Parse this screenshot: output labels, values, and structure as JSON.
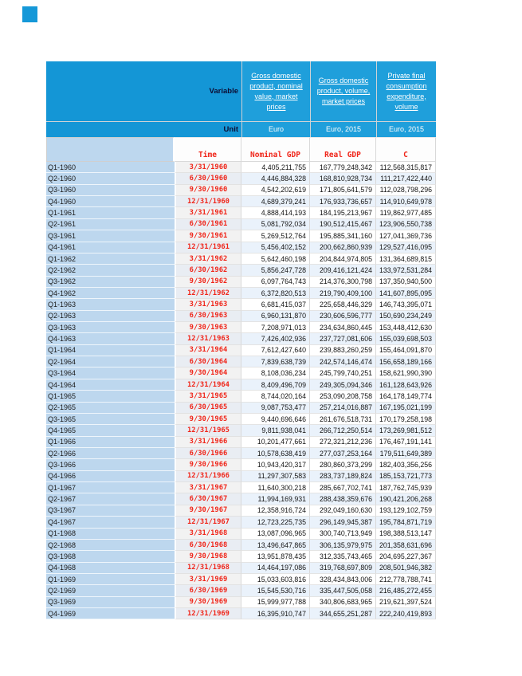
{
  "header": {
    "variable_label": "Variable",
    "unit_label": "Unit",
    "columns": [
      {
        "title": "Gross domestic product, nominal value, market prices",
        "unit": "Euro"
      },
      {
        "title": "Gross domestic product, volume, market prices",
        "unit": "Euro, 2015"
      },
      {
        "title": "Private final consumption expenditure, volume",
        "unit": "Euro, 2015"
      }
    ]
  },
  "table": {
    "column_headers": [
      "Time",
      "Nominal GDP",
      "Real GDP",
      "C"
    ],
    "rows": [
      {
        "label": "Q1-1960",
        "time": "3/31/1960",
        "nominal_gdp": "4,405,211,755",
        "real_gdp": "167,779,248,342",
        "c": "112,568,315,817"
      },
      {
        "label": "Q2-1960",
        "time": "6/30/1960",
        "nominal_gdp": "4,446,884,328",
        "real_gdp": "168,810,928,734",
        "c": "111,217,422,440"
      },
      {
        "label": "Q3-1960",
        "time": "9/30/1960",
        "nominal_gdp": "4,542,202,619",
        "real_gdp": "171,805,641,579",
        "c": "112,028,798,296"
      },
      {
        "label": "Q4-1960",
        "time": "12/31/1960",
        "nominal_gdp": "4,689,379,241",
        "real_gdp": "176,933,736,657",
        "c": "114,910,649,978"
      },
      {
        "label": "Q1-1961",
        "time": "3/31/1961",
        "nominal_gdp": "4,888,414,193",
        "real_gdp": "184,195,213,967",
        "c": "119,862,977,485"
      },
      {
        "label": "Q2-1961",
        "time": "6/30/1961",
        "nominal_gdp": "5,081,792,034",
        "real_gdp": "190,512,415,467",
        "c": "123,906,550,738"
      },
      {
        "label": "Q3-1961",
        "time": "9/30/1961",
        "nominal_gdp": "5,269,512,764",
        "real_gdp": "195,885,341,160",
        "c": "127,041,369,736"
      },
      {
        "label": "Q4-1961",
        "time": "12/31/1961",
        "nominal_gdp": "5,456,402,152",
        "real_gdp": "200,662,860,939",
        "c": "129,527,416,095"
      },
      {
        "label": "Q1-1962",
        "time": "3/31/1962",
        "nominal_gdp": "5,642,460,198",
        "real_gdp": "204,844,974,805",
        "c": "131,364,689,815"
      },
      {
        "label": "Q2-1962",
        "time": "6/30/1962",
        "nominal_gdp": "5,856,247,728",
        "real_gdp": "209,416,121,424",
        "c": "133,972,531,284"
      },
      {
        "label": "Q3-1962",
        "time": "9/30/1962",
        "nominal_gdp": "6,097,764,743",
        "real_gdp": "214,376,300,798",
        "c": "137,350,940,500"
      },
      {
        "label": "Q4-1962",
        "time": "12/31/1962",
        "nominal_gdp": "6,372,820,513",
        "real_gdp": "219,790,409,100",
        "c": "141,607,895,095"
      },
      {
        "label": "Q1-1963",
        "time": "3/31/1963",
        "nominal_gdp": "6,681,415,037",
        "real_gdp": "225,658,446,329",
        "c": "146,743,395,071"
      },
      {
        "label": "Q2-1963",
        "time": "6/30/1963",
        "nominal_gdp": "6,960,131,870",
        "real_gdp": "230,606,596,777",
        "c": "150,690,234,249"
      },
      {
        "label": "Q3-1963",
        "time": "9/30/1963",
        "nominal_gdp": "7,208,971,013",
        "real_gdp": "234,634,860,445",
        "c": "153,448,412,630"
      },
      {
        "label": "Q4-1963",
        "time": "12/31/1963",
        "nominal_gdp": "7,426,402,936",
        "real_gdp": "237,727,081,606",
        "c": "155,039,698,503"
      },
      {
        "label": "Q1-1964",
        "time": "3/31/1964",
        "nominal_gdp": "7,612,427,640",
        "real_gdp": "239,883,260,259",
        "c": "155,464,091,870"
      },
      {
        "label": "Q2-1964",
        "time": "6/30/1964",
        "nominal_gdp": "7,839,638,739",
        "real_gdp": "242,574,146,474",
        "c": "156,658,189,166"
      },
      {
        "label": "Q3-1964",
        "time": "9/30/1964",
        "nominal_gdp": "8,108,036,234",
        "real_gdp": "245,799,740,251",
        "c": "158,621,990,390"
      },
      {
        "label": "Q4-1964",
        "time": "12/31/1964",
        "nominal_gdp": "8,409,496,709",
        "real_gdp": "249,305,094,346",
        "c": "161,128,643,926"
      },
      {
        "label": "Q1-1965",
        "time": "3/31/1965",
        "nominal_gdp": "8,744,020,164",
        "real_gdp": "253,090,208,758",
        "c": "164,178,149,774"
      },
      {
        "label": "Q2-1965",
        "time": "6/30/1965",
        "nominal_gdp": "9,087,753,477",
        "real_gdp": "257,214,016,887",
        "c": "167,195,021,199"
      },
      {
        "label": "Q3-1965",
        "time": "9/30/1965",
        "nominal_gdp": "9,440,696,646",
        "real_gdp": "261,676,518,731",
        "c": "170,179,258,198"
      },
      {
        "label": "Q4-1965",
        "time": "12/31/1965",
        "nominal_gdp": "9,811,938,041",
        "real_gdp": "266,712,250,514",
        "c": "173,269,981,512"
      },
      {
        "label": "Q1-1966",
        "time": "3/31/1966",
        "nominal_gdp": "10,201,477,661",
        "real_gdp": "272,321,212,236",
        "c": "176,467,191,141"
      },
      {
        "label": "Q2-1966",
        "time": "6/30/1966",
        "nominal_gdp": "10,578,638,419",
        "real_gdp": "277,037,253,164",
        "c": "179,511,649,389"
      },
      {
        "label": "Q3-1966",
        "time": "9/30/1966",
        "nominal_gdp": "10,943,420,317",
        "real_gdp": "280,860,373,299",
        "c": "182,403,356,256"
      },
      {
        "label": "Q4-1966",
        "time": "12/31/1966",
        "nominal_gdp": "11,297,307,583",
        "real_gdp": "283,737,189,824",
        "c": "185,153,721,773"
      },
      {
        "label": "Q1-1967",
        "time": "3/31/1967",
        "nominal_gdp": "11,640,300,218",
        "real_gdp": "285,667,702,741",
        "c": "187,762,745,939"
      },
      {
        "label": "Q2-1967",
        "time": "6/30/1967",
        "nominal_gdp": "11,994,169,931",
        "real_gdp": "288,438,359,676",
        "c": "190,421,206,268"
      },
      {
        "label": "Q3-1967",
        "time": "9/30/1967",
        "nominal_gdp": "12,358,916,724",
        "real_gdp": "292,049,160,630",
        "c": "193,129,102,759"
      },
      {
        "label": "Q4-1967",
        "time": "12/31/1967",
        "nominal_gdp": "12,723,225,735",
        "real_gdp": "296,149,945,387",
        "c": "195,784,871,719"
      },
      {
        "label": "Q1-1968",
        "time": "3/31/1968",
        "nominal_gdp": "13,087,096,965",
        "real_gdp": "300,740,713,949",
        "c": "198,388,513,147"
      },
      {
        "label": "Q2-1968",
        "time": "6/30/1968",
        "nominal_gdp": "13,496,647,865",
        "real_gdp": "306,135,979,975",
        "c": "201,358,631,696"
      },
      {
        "label": "Q3-1968",
        "time": "9/30/1968",
        "nominal_gdp": "13,951,878,435",
        "real_gdp": "312,335,743,465",
        "c": "204,695,227,367"
      },
      {
        "label": "Q4-1968",
        "time": "12/31/1968",
        "nominal_gdp": "14,464,197,086",
        "real_gdp": "319,768,697,809",
        "c": "208,501,946,382"
      },
      {
        "label": "Q1-1969",
        "time": "3/31/1969",
        "nominal_gdp": "15,033,603,816",
        "real_gdp": "328,434,843,006",
        "c": "212,778,788,741"
      },
      {
        "label": "Q2-1969",
        "time": "6/30/1969",
        "nominal_gdp": "15,545,530,716",
        "real_gdp": "335,447,505,058",
        "c": "216,485,272,455"
      },
      {
        "label": "Q3-1969",
        "time": "9/30/1969",
        "nominal_gdp": "15,999,977,788",
        "real_gdp": "340,806,683,965",
        "c": "219,621,397,524"
      },
      {
        "label": "Q4-1969",
        "time": "12/31/1969",
        "nominal_gdp": "16,395,910,747",
        "real_gdp": "344,655,251,287",
        "c": "222,240,419,893"
      }
    ]
  },
  "colors": {
    "header_blue": "#1496d6",
    "header_blue_light": "#1f9fdb",
    "label_column_blue": "#bdd7ee",
    "accent_red": "#f0261a",
    "stripe_blue": "#eaf2fb",
    "stripe_gray": "#f2f2f2"
  }
}
